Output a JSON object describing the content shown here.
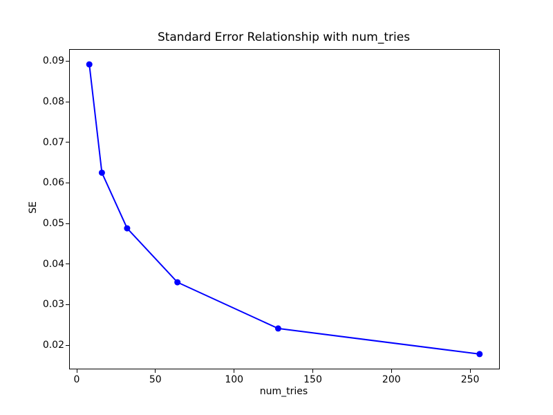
{
  "chart_data": {
    "type": "line",
    "title": "Standard Error Relationship with num_tries",
    "xlabel": "num_tries",
    "ylabel": "SE",
    "x": [
      8,
      16,
      32,
      64,
      128,
      256
    ],
    "y": [
      0.0892,
      0.0625,
      0.0488,
      0.0355,
      0.0241,
      0.0178
    ],
    "xticks": [
      0,
      50,
      100,
      150,
      200,
      250
    ],
    "yticks": [
      0.02,
      0.03,
      0.04,
      0.05,
      0.06,
      0.07,
      0.08,
      0.09
    ],
    "ytick_decimals": 2,
    "xlim": [
      -4.4,
      268.4
    ],
    "ylim": [
      0.0142,
      0.0928
    ],
    "line_color": "#0000ff",
    "marker": "o",
    "marker_radius": 4.5,
    "line_width": 2,
    "grid": false,
    "legend": null,
    "background_color": "#ffffff",
    "axes_color": "#000000"
  }
}
